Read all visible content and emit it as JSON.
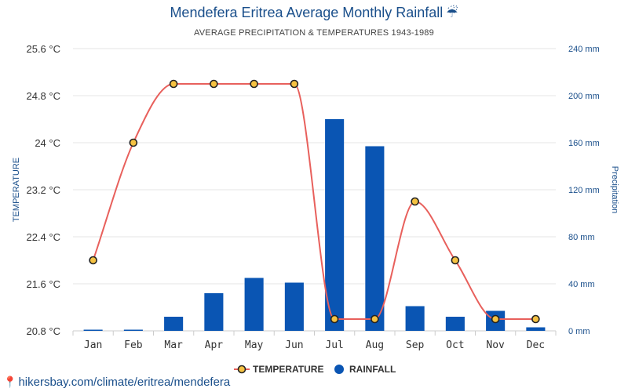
{
  "title": "Mendefera Eritrea Average Monthly Rainfall",
  "title_icon": "umbrella-icon",
  "subtitle": "AVERAGE PRECIPITATION & TEMPERATURES 1943-1989",
  "footer": "hikersbay.com/climate/eritrea/mendefera",
  "footer_icon": "location-pin-icon",
  "colors": {
    "line": "#e8605c",
    "marker_fill": "#f5c242",
    "marker_stroke": "#222222",
    "bar": "#0a55b3",
    "left_axis_text": "#333333",
    "right_axis_text": "#1a4f8b",
    "grid": "#e6e6e6"
  },
  "chart_data": {
    "type": "bar+line",
    "categories": [
      "Jan",
      "Feb",
      "Mar",
      "Apr",
      "May",
      "Jun",
      "Jul",
      "Aug",
      "Sep",
      "Oct",
      "Nov",
      "Dec"
    ],
    "series": [
      {
        "name": "TEMPERATURE",
        "type": "line",
        "axis": "left",
        "values": [
          22.0,
          24.0,
          25.0,
          25.0,
          25.0,
          25.0,
          21.0,
          21.0,
          23.0,
          22.0,
          21.0,
          21.0
        ]
      },
      {
        "name": "RAINFALL",
        "type": "bar",
        "axis": "right",
        "values": [
          1,
          1,
          12,
          32,
          45,
          41,
          180,
          157,
          21,
          12,
          17,
          3
        ]
      }
    ],
    "left_axis": {
      "label": "TEMPERATURE",
      "ticks": [
        "25.6 °C",
        "24.8 °C",
        "24 °C",
        "23.2 °C",
        "22.4 °C",
        "21.6 °C",
        "20.8 °C"
      ],
      "ylim": [
        20.8,
        25.6
      ]
    },
    "right_axis": {
      "label": "Precipitation",
      "ticks": [
        "240 mm",
        "200 mm",
        "160 mm",
        "120 mm",
        "80 mm",
        "40 mm",
        "0 mm"
      ],
      "ylim": [
        0,
        240
      ]
    },
    "grid": true,
    "legend": {
      "position": "bottom-center",
      "items": [
        {
          "label": "TEMPERATURE",
          "marker": "line-circle"
        },
        {
          "label": "RAINFALL",
          "marker": "circle"
        }
      ]
    }
  }
}
